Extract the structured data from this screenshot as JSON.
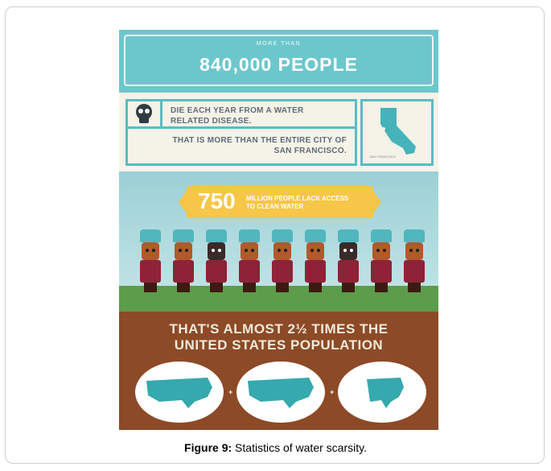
{
  "poster": {
    "banner_pre": "MORE THAN",
    "banner_big": "840,000 PEOPLE",
    "line1": "DIE EACH YEAR FROM A WATER RELATED DISEASE.",
    "line2": "THAT IS MORE THAN THE ENTIRE CITY OF SAN FRANCISCO.",
    "map_label": "SAN FRANCISCO",
    "gold_number": "750",
    "gold_text": "MILLION PEOPLE LACK ACCESS TO CLEAN WATER",
    "dirt_title": "THAT'S ALMOST 2½ TIMES THE UNITED STATES POPULATION",
    "plus": "+"
  },
  "caption": {
    "label": "Figure 9:",
    "text": " Statistics of water scarsity."
  },
  "colors": {
    "teal": "#6cc7cc",
    "gold": "#f6c648",
    "dirt": "#8c4a27",
    "grass": "#5d9c4a"
  }
}
